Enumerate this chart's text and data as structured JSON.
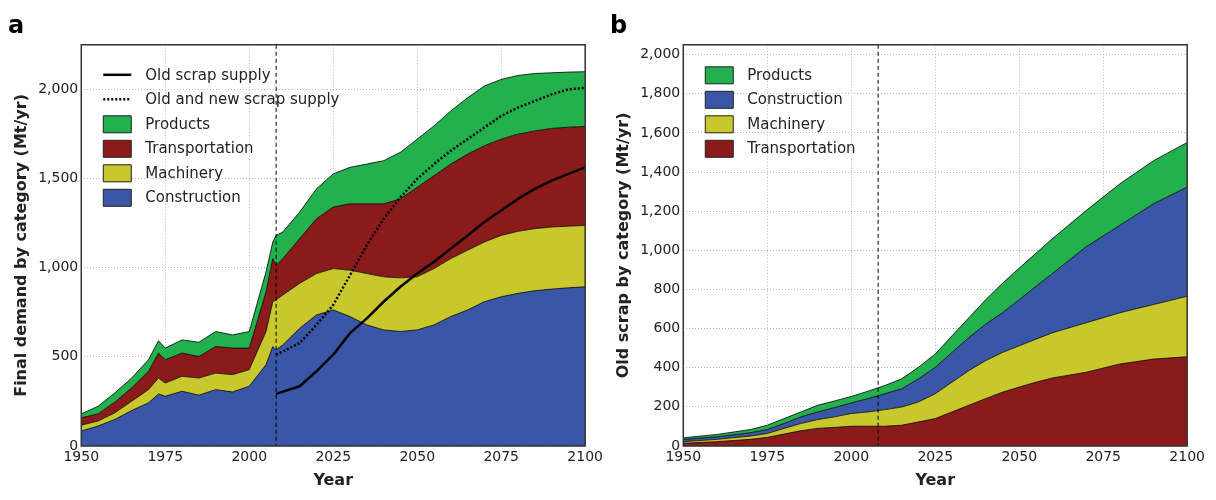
{
  "chart_data": [
    {
      "type": "area",
      "title": "a",
      "xlabel": "Year",
      "ylabel": "Final demand by category (Mt/yr)",
      "stacked": true,
      "x": [
        1950,
        1955,
        1960,
        1965,
        1970,
        1973,
        1975,
        1980,
        1985,
        1990,
        1995,
        2000,
        2005,
        2007,
        2008,
        2010,
        2015,
        2020,
        2025,
        2030,
        2035,
        2040,
        2045,
        2050,
        2055,
        2060,
        2065,
        2070,
        2075,
        2080,
        2085,
        2090,
        2095,
        2100
      ],
      "series": [
        {
          "name": "Construction",
          "color": "#3a56a6",
          "values": [
            84,
            112,
            149,
            199,
            242,
            292,
            279,
            307,
            285,
            316,
            303,
            335,
            456,
            558,
            540,
            567,
            660,
            735,
            763,
            726,
            679,
            651,
            642,
            651,
            679,
            726,
            763,
            809,
            837,
            856,
            871,
            880,
            887,
            893
          ]
        },
        {
          "name": "Machinery",
          "color": "#c8c82c",
          "values": [
            33,
            28,
            37,
            52,
            74,
            89,
            74,
            84,
            96,
            93,
            97,
            93,
            186,
            251,
            279,
            280,
            252,
            232,
            232,
            260,
            288,
            298,
            301,
            298,
            316,
            325,
            335,
            335,
            344,
            348,
            348,
            348,
            346,
            344
          ]
        },
        {
          "name": "Transportation",
          "color": "#8b1a1a",
          "values": [
            41,
            40,
            60,
            75,
            103,
            140,
            131,
            130,
            121,
            149,
            149,
            121,
            223,
            242,
            195,
            204,
            251,
            307,
            345,
            372,
            391,
            409,
            443,
            502,
            521,
            530,
            539,
            540,
            540,
            545,
            548,
            553,
            555,
            555
          ]
        },
        {
          "name": "Products",
          "color": "#22b14c",
          "values": [
            22,
            43,
            52,
            55,
            65,
            69,
            65,
            74,
            80,
            84,
            74,
            93,
            112,
            93,
            167,
            149,
            149,
            168,
            186,
            205,
            223,
            242,
            261,
            270,
            279,
            298,
            316,
            335,
            335,
            329,
            322,
            312,
            309,
            307
          ]
        },
        {
          "name": "Old scrap supply",
          "type": "line",
          "color": "#000000",
          "line_style": "solid",
          "x": [
            2008,
            2015,
            2020,
            2025,
            2030,
            2035,
            2040,
            2045,
            2050,
            2055,
            2060,
            2065,
            2070,
            2075,
            2080,
            2085,
            2090,
            2095,
            2100
          ],
          "values": [
            292,
            335,
            419,
            512,
            633,
            716,
            809,
            893,
            967,
            1033,
            1107,
            1181,
            1256,
            1321,
            1386,
            1442,
            1488,
            1526,
            1563
          ]
        },
        {
          "name": "Old and new scrap supply",
          "type": "line",
          "color": "#000000",
          "line_style": "dotted",
          "x": [
            2008,
            2015,
            2020,
            2025,
            2030,
            2035,
            2040,
            2045,
            2050,
            2055,
            2060,
            2065,
            2070,
            2075,
            2080,
            2085,
            2090,
            2095,
            2100
          ],
          "values": [
            512,
            577,
            679,
            791,
            958,
            1126,
            1274,
            1395,
            1498,
            1581,
            1656,
            1721,
            1786,
            1851,
            1898,
            1935,
            1972,
            2000,
            2009
          ]
        }
      ],
      "xlim": [
        1950,
        2100
      ],
      "xticks": [
        1950,
        1975,
        2000,
        2025,
        2050,
        2075,
        2100
      ],
      "ylim": [
        0,
        2250
      ],
      "yticks": [
        0,
        500,
        {
          "value": 1000,
          "label": "1,000"
        },
        {
          "value": 1500,
          "label": "1,500"
        },
        {
          "value": 2000,
          "label": "2,000"
        }
      ],
      "ref_lines": [
        {
          "axis": "x",
          "value": 2008,
          "line_style": "dashed",
          "color": "#000000"
        }
      ],
      "grid": true,
      "legend": "top left"
    },
    {
      "type": "area",
      "title": "b",
      "xlabel": "Year",
      "ylabel": "Old scrap by category (Mt/yr)",
      "stacked": true,
      "x": [
        1950,
        1960,
        1970,
        1975,
        1980,
        1985,
        1990,
        1995,
        2000,
        2005,
        2010,
        2015,
        2020,
        2025,
        2030,
        2035,
        2040,
        2045,
        2050,
        2055,
        2060,
        2070,
        2080,
        2090,
        2100
      ],
      "series": [
        {
          "name": "Transportation",
          "color": "#8b1a1a",
          "values": [
            14,
            22,
            34,
            44,
            61,
            78,
            90,
            95,
            101,
            101,
            101,
            106,
            123,
            140,
            174,
            208,
            242,
            275,
            301,
            326,
            348,
            377,
            419,
            444,
            456
          ]
        },
        {
          "name": "Machinery",
          "color": "#c8c82c",
          "values": [
            8,
            12,
            17,
            20,
            29,
            37,
            45,
            54,
            65,
            73,
            85,
            93,
            102,
            127,
            152,
            177,
            194,
            203,
            211,
            220,
            231,
            253,
            262,
            279,
            309
          ]
        },
        {
          "name": "Construction",
          "color": "#3a56a6",
          "values": [
            12,
            13,
            17,
            20,
            25,
            34,
            39,
            47,
            54,
            68,
            81,
            93,
            118,
            135,
            152,
            169,
            186,
            203,
            236,
            270,
            304,
            389,
            447,
            515,
            558
          ]
        },
        {
          "name": "Products",
          "color": "#22b14c",
          "values": [
            8,
            12,
            16,
            22,
            25,
            25,
            34,
            34,
            33,
            38,
            42,
            51,
            59,
            68,
            85,
            101,
            125,
            150,
            161,
            169,
            178,
            185,
            212,
            220,
            228
          ]
        }
      ],
      "xlim": [
        1950,
        2100
      ],
      "xticks": [
        1950,
        1975,
        2000,
        2025,
        2050,
        2075,
        2100
      ],
      "ylim": [
        0,
        2050
      ],
      "yticks": [
        0,
        200,
        400,
        600,
        800,
        {
          "value": 1000,
          "label": "1,000"
        },
        {
          "value": 1200,
          "label": "1,200"
        },
        {
          "value": 1400,
          "label": "1,400"
        },
        {
          "value": 1600,
          "label": "1,600"
        },
        {
          "value": 1800,
          "label": "1,800"
        },
        {
          "value": 2000,
          "label": "2,000"
        }
      ],
      "ref_lines": [
        {
          "axis": "x",
          "value": 2008,
          "line_style": "dashed",
          "color": "#000000"
        }
      ],
      "grid": true,
      "legend": "top left"
    }
  ]
}
